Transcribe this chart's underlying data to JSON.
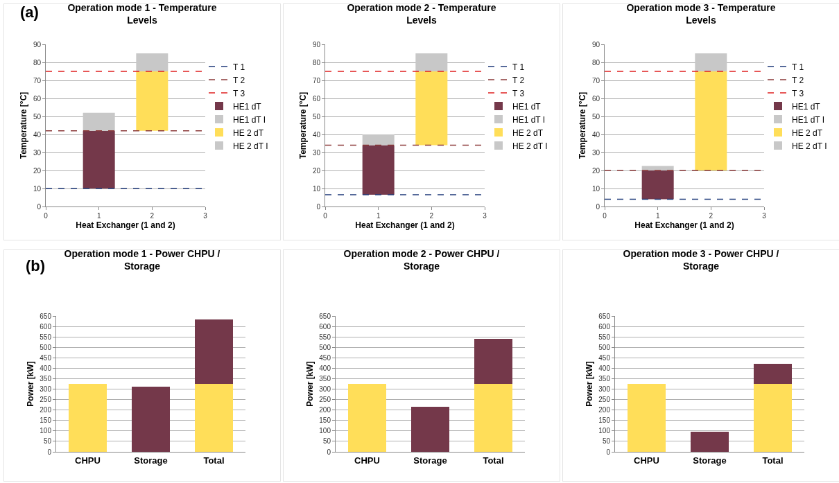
{
  "chart_data": [
    {
      "type": "bar",
      "title": "Operation mode 1 - Temperature Levels",
      "xlabel": "Heat Exchanger (1 and 2)",
      "ylabel": "Temperature [°C]",
      "annotations": [
        "(a)"
      ],
      "xlim": [
        0,
        3
      ],
      "xticks": [
        0,
        1,
        2,
        3
      ],
      "ylim": [
        0,
        90
      ],
      "yticks": [
        0,
        10,
        20,
        30,
        40,
        50,
        60,
        70,
        80,
        90
      ],
      "grid": "y",
      "legend": "right",
      "series": [
        {
          "name": "T 1",
          "type": "line",
          "line_style": "dashed",
          "color": "#1f3a7a",
          "x": [
            0,
            3
          ],
          "values": [
            10,
            10
          ]
        },
        {
          "name": "T 2",
          "type": "line",
          "line_style": "dashed",
          "color": "#8b3a3a",
          "x": [
            0,
            3
          ],
          "values": [
            42,
            42
          ]
        },
        {
          "name": "T 3",
          "type": "line",
          "line_style": "dashed",
          "color": "#e02020",
          "x": [
            0,
            3
          ],
          "values": [
            75,
            75
          ]
        },
        {
          "name": "HE1 dT",
          "color": "#74384a",
          "x": [
            1
          ],
          "base": [
            10
          ],
          "values": [
            32
          ]
        },
        {
          "name": "HE1 dT I",
          "color": "#c8c8c8",
          "x": [
            1
          ],
          "base": [
            42
          ],
          "values": [
            10
          ]
        },
        {
          "name": "HE 2 dT",
          "color": "#ffde59",
          "x": [
            2
          ],
          "base": [
            42
          ],
          "values": [
            33
          ]
        },
        {
          "name": "HE 2 dT I",
          "color": "#c8c8c8",
          "x": [
            2
          ],
          "base": [
            75
          ],
          "values": [
            10
          ]
        }
      ]
    },
    {
      "type": "bar",
      "title": "Operation mode 2 - Temperature Levels",
      "xlabel": "Heat Exchanger (1 and 2)",
      "ylabel": "Temperature [°C]",
      "xlim": [
        0,
        3
      ],
      "xticks": [
        0,
        1,
        2,
        3
      ],
      "ylim": [
        0,
        90
      ],
      "yticks": [
        0,
        10,
        20,
        30,
        40,
        50,
        60,
        70,
        80,
        90
      ],
      "grid": "y",
      "legend": "right",
      "series": [
        {
          "name": "T 1",
          "type": "line",
          "line_style": "dashed",
          "color": "#1f3a7a",
          "x": [
            0,
            3
          ],
          "values": [
            6.5,
            6.5
          ]
        },
        {
          "name": "T 2",
          "type": "line",
          "line_style": "dashed",
          "color": "#8b3a3a",
          "x": [
            0,
            3
          ],
          "values": [
            34,
            34
          ]
        },
        {
          "name": "T 3",
          "type": "line",
          "line_style": "dashed",
          "color": "#e02020",
          "x": [
            0,
            3
          ],
          "values": [
            75,
            75
          ]
        },
        {
          "name": "HE1 dT",
          "color": "#74384a",
          "x": [
            1
          ],
          "base": [
            6.5
          ],
          "values": [
            27.5
          ]
        },
        {
          "name": "HE1 dT I",
          "color": "#c8c8c8",
          "x": [
            1
          ],
          "base": [
            34
          ],
          "values": [
            6
          ]
        },
        {
          "name": "HE 2 dT",
          "color": "#ffde59",
          "x": [
            2
          ],
          "base": [
            34
          ],
          "values": [
            41
          ]
        },
        {
          "name": "HE 2 dT I",
          "color": "#c8c8c8",
          "x": [
            2
          ],
          "base": [
            75
          ],
          "values": [
            10
          ]
        }
      ]
    },
    {
      "type": "bar",
      "title": "Operation mode 3 - Temperature Levels",
      "xlabel": "Heat Exchanger (1 and 2)",
      "ylabel": "Temperature [°C]",
      "xlim": [
        0,
        3
      ],
      "xticks": [
        0,
        1,
        2,
        3
      ],
      "ylim": [
        0,
        90
      ],
      "yticks": [
        0,
        10,
        20,
        30,
        40,
        50,
        60,
        70,
        80,
        90
      ],
      "grid": "y",
      "legend": "right",
      "series": [
        {
          "name": "T 1",
          "type": "line",
          "line_style": "dashed",
          "color": "#1f3a7a",
          "x": [
            0,
            3
          ],
          "values": [
            4,
            4
          ]
        },
        {
          "name": "T 2",
          "type": "line",
          "line_style": "dashed",
          "color": "#8b3a3a",
          "x": [
            0,
            3
          ],
          "values": [
            20,
            20
          ]
        },
        {
          "name": "T 3",
          "type": "line",
          "line_style": "dashed",
          "color": "#e02020",
          "x": [
            0,
            3
          ],
          "values": [
            75,
            75
          ]
        },
        {
          "name": "HE1 dT",
          "color": "#74384a",
          "x": [
            1
          ],
          "base": [
            4
          ],
          "values": [
            16
          ]
        },
        {
          "name": "HE1 dT I",
          "color": "#c8c8c8",
          "x": [
            1
          ],
          "base": [
            20
          ],
          "values": [
            2.5
          ]
        },
        {
          "name": "HE 2 dT",
          "color": "#ffde59",
          "x": [
            2
          ],
          "base": [
            20
          ],
          "values": [
            55
          ]
        },
        {
          "name": "HE 2 dT I",
          "color": "#c8c8c8",
          "x": [
            2
          ],
          "base": [
            75
          ],
          "values": [
            10
          ]
        }
      ]
    },
    {
      "type": "bar",
      "stacked": true,
      "title": "Operation mode 1 - Power CHPU / Storage",
      "ylabel": "Power [kW]",
      "annotations": [
        "(b)"
      ],
      "categories": [
        "CHPU",
        "Storage",
        "Total"
      ],
      "ylim": [
        0,
        650
      ],
      "yticks": [
        0,
        50,
        100,
        150,
        200,
        250,
        300,
        350,
        400,
        450,
        500,
        550,
        600,
        650
      ],
      "grid": "y",
      "series": [
        {
          "color": "#ffde59",
          "values": [
            325,
            null,
            325
          ]
        },
        {
          "color": "#74384a",
          "values": [
            null,
            313,
            310
          ]
        }
      ]
    },
    {
      "type": "bar",
      "stacked": true,
      "title": "Operation mode 2 - Power CHPU / Storage",
      "ylabel": "Power [kW]",
      "categories": [
        "CHPU",
        "Storage",
        "Total"
      ],
      "ylim": [
        0,
        650
      ],
      "yticks": [
        0,
        50,
        100,
        150,
        200,
        250,
        300,
        350,
        400,
        450,
        500,
        550,
        600,
        650
      ],
      "grid": "y",
      "series": [
        {
          "color": "#ffde59",
          "values": [
            325,
            null,
            325
          ]
        },
        {
          "color": "#74384a",
          "values": [
            null,
            215,
            217
          ]
        }
      ]
    },
    {
      "type": "bar",
      "stacked": true,
      "title": "Operation mode 3 - Power CHPU / Storage",
      "ylabel": "Power [kW]",
      "categories": [
        "CHPU",
        "Storage",
        "Total"
      ],
      "ylim": [
        0,
        650
      ],
      "yticks": [
        0,
        50,
        100,
        150,
        200,
        250,
        300,
        350,
        400,
        450,
        500,
        550,
        600,
        650
      ],
      "grid": "y",
      "series": [
        {
          "color": "#ffde59",
          "values": [
            325,
            null,
            325
          ]
        },
        {
          "color": "#74384a",
          "values": [
            null,
            95,
            95
          ]
        }
      ]
    }
  ]
}
